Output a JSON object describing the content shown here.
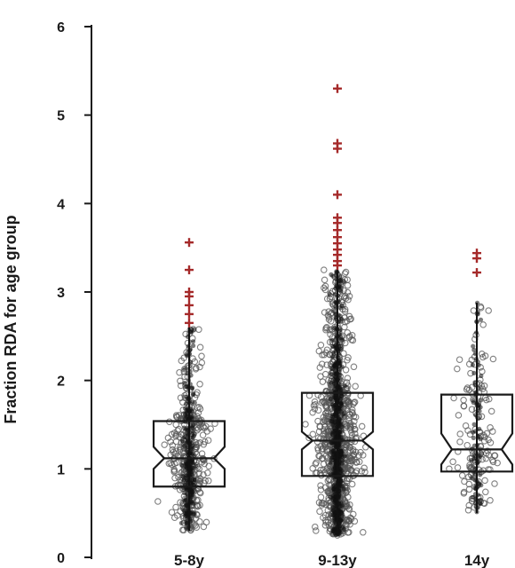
{
  "chart_data": {
    "type": "box",
    "title": "",
    "xlabel": "",
    "ylabel": "Fraction RDA for age group",
    "ylim": [
      0,
      6
    ],
    "yticks": [
      0,
      1,
      2,
      3,
      4,
      5,
      6
    ],
    "categories": [
      "5-8y",
      "9-13y",
      "14y"
    ],
    "boxes": [
      {
        "category": "5-8y",
        "min": 0.3,
        "q1": 0.8,
        "median": 1.12,
        "q3": 1.54,
        "whisker_high": 2.6,
        "notch_low": 1.0,
        "notch_high": 1.25,
        "outliers": [
          2.65,
          2.75,
          2.85,
          2.95,
          3.0,
          3.25,
          3.56
        ],
        "n_points": 380
      },
      {
        "category": "9-13y",
        "min": 0.25,
        "q1": 0.92,
        "median": 1.32,
        "q3": 1.86,
        "whisker_high": 3.25,
        "notch_low": 1.22,
        "notch_high": 1.42,
        "outliers": [
          3.3,
          3.35,
          3.42,
          3.48,
          3.55,
          3.62,
          3.7,
          3.78,
          3.84,
          4.1,
          4.62,
          4.68,
          5.3
        ],
        "n_points": 900
      },
      {
        "category": "14y",
        "min": 0.5,
        "q1": 0.97,
        "median": 1.22,
        "q3": 1.84,
        "whisker_high": 2.88,
        "notch_low": 1.05,
        "notch_high": 1.4,
        "outliers": [
          3.22,
          3.38,
          3.44
        ],
        "n_points": 140
      }
    ],
    "colors": {
      "points": "#555555",
      "outliers": "#a52a2a",
      "box": "#1a1a1a",
      "axis": "#1a1a1a"
    },
    "grid": false,
    "legend": "none"
  }
}
